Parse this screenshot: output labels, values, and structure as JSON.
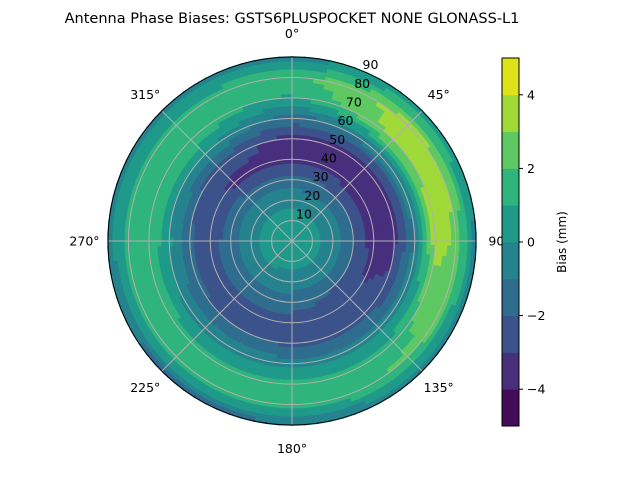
{
  "chart_data": {
    "type": "polar-contour",
    "title": "Antenna Phase Biases: GSTS6PLUSPOCKET NONE GLONASS-L1",
    "colorbar_label": "Bias (mm)",
    "colormap": "viridis",
    "levels": [
      -5,
      -4,
      -3,
      -2,
      -1,
      0,
      1,
      2,
      3,
      4,
      5
    ],
    "level_colors": [
      "#440c56",
      "#472f7d",
      "#3b528b",
      "#2e6d8e",
      "#25838e",
      "#1f9a8a",
      "#2fb47c",
      "#5ec962",
      "#a0da39",
      "#dde318"
    ],
    "colorbar_ticks": [
      "4",
      "2",
      "0",
      "−2",
      "−4"
    ],
    "colorbar_tick_values": [
      4,
      2,
      0,
      -2,
      -4
    ],
    "theta_direction": "clockwise",
    "theta_zero": "top",
    "azimuth_labels": [
      "0°",
      "45°",
      "90°",
      "135°",
      "180°",
      "225°",
      "270°",
      "315°"
    ],
    "azimuth_values": [
      0,
      45,
      90,
      135,
      180,
      225,
      270,
      315
    ],
    "zenith_labels": [
      "10",
      "20",
      "30",
      "40",
      "50",
      "60",
      "70",
      "80",
      "90"
    ],
    "zenith_values": [
      10,
      20,
      30,
      40,
      50,
      60,
      70,
      80,
      90
    ],
    "rlim": [
      0,
      90
    ],
    "grid": true,
    "grid_azimuths": [
      0,
      45,
      90,
      135,
      180,
      225,
      270,
      315
    ],
    "grid_zeniths": [
      0,
      10,
      20,
      30,
      40,
      50,
      60,
      70,
      80,
      90
    ],
    "bias_grid_mm": [
      [
        0.5,
        0.4,
        -0.3,
        -1.5,
        -3.2,
        -3.3,
        -1.5,
        0.8,
        1.8,
        -0.5
      ],
      [
        0.5,
        0.4,
        -0.5,
        -2.0,
        -3.5,
        -3.5,
        -0.5,
        3.3,
        3.5,
        0.5
      ],
      [
        0.5,
        0.4,
        -0.5,
        -2.0,
        -3.5,
        -3.3,
        -0.8,
        3.5,
        2.8,
        -0.5
      ],
      [
        0.5,
        0.3,
        -0.5,
        -2.0,
        -2.8,
        -2.5,
        -0.5,
        1.5,
        2.2,
        -0.5
      ],
      [
        0.5,
        0.3,
        -0.5,
        -1.5,
        -2.5,
        -2.2,
        -0.5,
        1.5,
        1.5,
        -1.2
      ],
      [
        0.5,
        0.4,
        -0.3,
        -1.5,
        -2.5,
        -2.0,
        -0.5,
        1.5,
        1.5,
        -1.5
      ],
      [
        0.5,
        0.5,
        -0.3,
        -1.5,
        -2.5,
        -1.8,
        0.2,
        1.8,
        1.5,
        -0.5
      ],
      [
        0.5,
        0.5,
        -0.3,
        -1.5,
        -3.2,
        -2.5,
        0.2,
        1.8,
        1.5,
        -0.5
      ]
    ]
  }
}
